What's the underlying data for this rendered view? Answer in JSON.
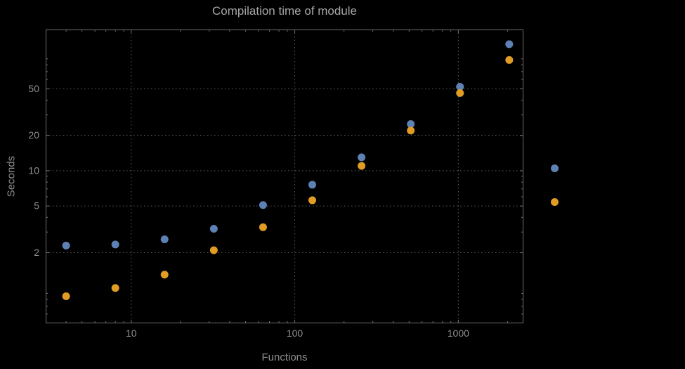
{
  "colors": {
    "background": "#000000",
    "grid": "#5d5d5d",
    "frame": "#707070",
    "text": "#8f8f8f",
    "series_blue": "#5e81b5",
    "series_orange": "#e19c24"
  },
  "chart_data": {
    "type": "scatter",
    "title": "Compilation time of module",
    "xlabel": "Functions",
    "ylabel": "Seconds",
    "x_scale": "log",
    "y_scale": "log",
    "grid": "dotted",
    "legend_position": "right-outside",
    "xlim": [
      3,
      2500
    ],
    "ylim": [
      0.5,
      160
    ],
    "x_ticks": [
      10,
      100,
      1000
    ],
    "x_tick_labels": [
      "10",
      "100",
      "1000"
    ],
    "y_ticks": [
      2,
      5,
      10,
      20,
      50
    ],
    "y_tick_labels": [
      "2",
      "5",
      "10",
      "20",
      "50"
    ],
    "x_gridlines": [
      10,
      100,
      1000
    ],
    "y_gridlines": [
      2,
      5,
      10,
      20,
      50
    ],
    "x": [
      4,
      8,
      16,
      32,
      64,
      128,
      256,
      512,
      1024,
      2048
    ],
    "series": [
      {
        "name": "blue",
        "color": "#5e81b5",
        "values": [
          2.3,
          2.35,
          2.6,
          3.2,
          5.1,
          7.6,
          13,
          25,
          52,
          120
        ]
      },
      {
        "name": "orange",
        "color": "#e19c24",
        "values": [
          0.85,
          1.0,
          1.3,
          2.1,
          3.3,
          5.6,
          11,
          22,
          46,
          88
        ]
      }
    ]
  }
}
